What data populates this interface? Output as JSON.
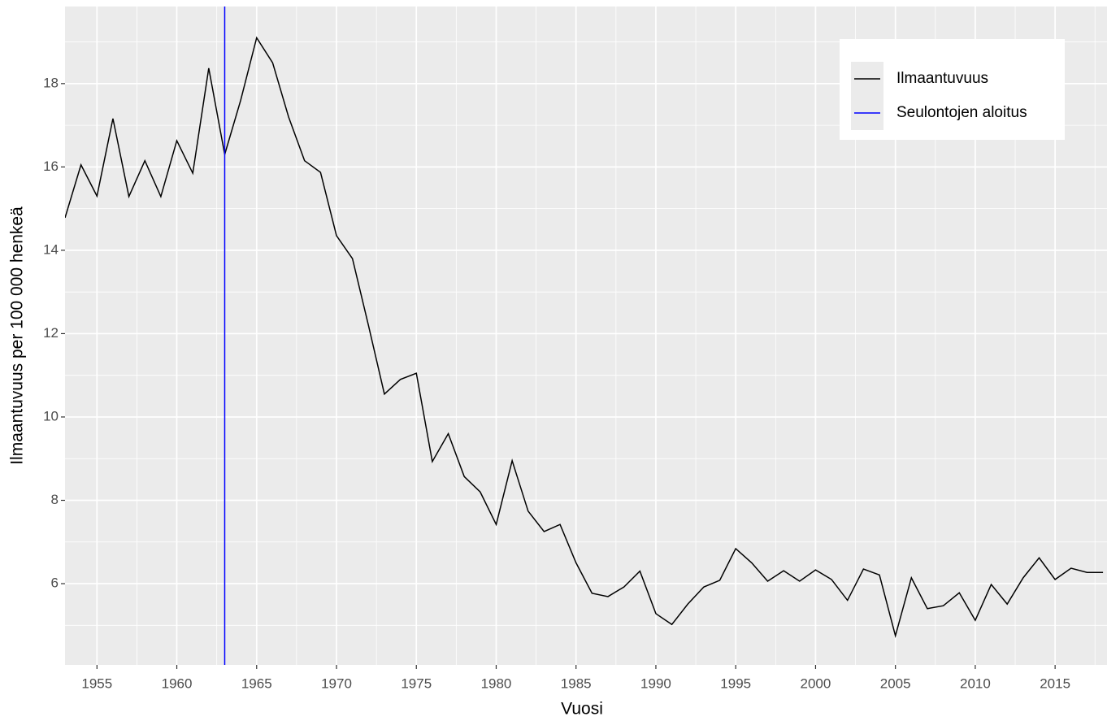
{
  "chart_data": {
    "type": "line",
    "xlabel": "Vuosi",
    "ylabel": "Ilmaantuvuus per 100 000 henkeä",
    "x": [
      1953,
      1954,
      1955,
      1956,
      1957,
      1958,
      1959,
      1960,
      1961,
      1962,
      1963,
      1964,
      1965,
      1966,
      1967,
      1968,
      1969,
      1970,
      1971,
      1972,
      1973,
      1974,
      1975,
      1976,
      1977,
      1978,
      1979,
      1980,
      1981,
      1982,
      1983,
      1984,
      1985,
      1986,
      1987,
      1988,
      1989,
      1990,
      1991,
      1992,
      1993,
      1994,
      1995,
      1996,
      1997,
      1998,
      1999,
      2000,
      2001,
      2002,
      2003,
      2004,
      2005,
      2006,
      2007,
      2008,
      2009,
      2010,
      2011,
      2012,
      2013,
      2014,
      2015,
      2016,
      2017,
      2018
    ],
    "series": [
      {
        "name": "Ilmaantuvuus",
        "color": "#000000",
        "values": [
          14.78,
          16.05,
          15.3,
          17.16,
          15.29,
          16.15,
          15.29,
          16.63,
          15.85,
          18.37,
          16.3,
          17.6,
          19.1,
          18.5,
          17.2,
          16.15,
          15.87,
          14.35,
          13.8,
          12.2,
          10.55,
          10.9,
          11.05,
          8.93,
          9.6,
          8.57,
          8.2,
          7.42,
          8.95,
          7.74,
          7.25,
          7.42,
          6.5,
          5.77,
          5.69,
          5.92,
          6.3,
          5.28,
          5.02,
          5.51,
          5.92,
          6.08,
          6.84,
          6.5,
          6.06,
          6.31,
          6.06,
          6.33,
          6.1,
          5.6,
          6.35,
          6.21,
          4.75,
          6.14,
          5.4,
          5.47,
          5.78,
          5.12,
          5.98,
          5.51,
          6.14,
          6.62,
          6.1,
          6.37,
          6.27,
          6.27
        ]
      }
    ],
    "vlines": [
      {
        "name": "Seulontojen aloitus",
        "color": "#0000ff",
        "x": 1963
      }
    ],
    "xlim": [
      1953,
      2018.25
    ],
    "ylim": [
      4.05,
      19.85
    ],
    "xticks": [
      1955,
      1960,
      1965,
      1970,
      1975,
      1980,
      1985,
      1990,
      1995,
      2000,
      2005,
      2010,
      2015
    ],
    "yticks": [
      6,
      8,
      10,
      12,
      14,
      16,
      18
    ],
    "xminor_ticks": [
      1957.5,
      1962.5,
      1967.5,
      1972.5,
      1977.5,
      1982.5,
      1987.5,
      1992.5,
      1997.5,
      2002.5,
      2007.5,
      2012.5,
      2017.5
    ],
    "yminor_ticks": [
      5,
      7,
      9,
      11,
      13,
      15,
      17,
      19
    ],
    "grid": true,
    "legend_position": "top-right"
  }
}
